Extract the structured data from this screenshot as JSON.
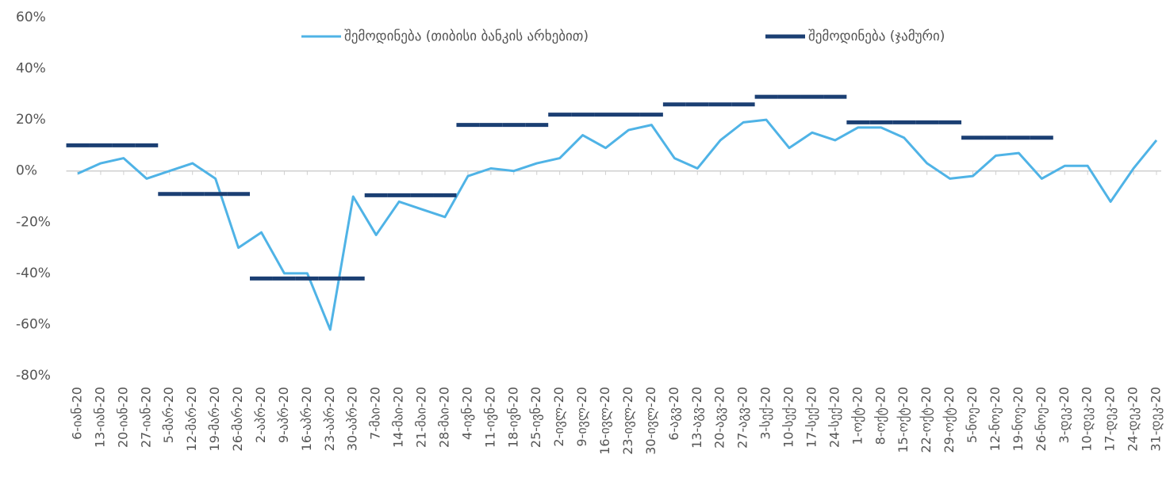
{
  "chart_data": {
    "type": "line",
    "categories": [
      "6-იან-20",
      "13-იან-20",
      "20-იან-20",
      "27-იან-20",
      "5-მარ-20",
      "12-მარ-20",
      "19-მარ-20",
      "26-მარ-20",
      "2-აპრ-20",
      "9-აპრ-20",
      "16-აპრ-20",
      "23-აპრ-20",
      "30-აპრ-20",
      "7-მაი-20",
      "14-მაი-20",
      "21-მაი-20",
      "28-მაი-20",
      "4-ივნ-20",
      "11-ივნ-20",
      "18-ივნ-20",
      "25-ივნ-20",
      "2-ივლ-20",
      "9-ივლ-20",
      "16-ივლ-20",
      "23-ივლ-20",
      "30-ივლ-20",
      "6-აგვ-20",
      "13-აგვ-20",
      "20-აგვ-20",
      "27-აგვ-20",
      "3-სექ-20",
      "10-სექ-20",
      "17-სექ-20",
      "24-სექ-20",
      "1-ოქტ-20",
      "8-ოქტ-20",
      "15-ოქტ-20",
      "22-ოქტ-20",
      "29-ოქტ-20",
      "5-ნოე-20",
      "12-ნოე-20",
      "19-ნოე-20",
      "26-ნოე-20",
      "3-დეკ-20",
      "10-დეკ-20",
      "17-დეკ-20",
      "24-დეკ-20",
      "31-დეკ-20"
    ],
    "series": [
      {
        "name": "შემოდინება (თიბისი ბანკის არხებით)",
        "color": "#4fb3e6",
        "style": "line",
        "values": [
          -1,
          3,
          5,
          -3,
          0,
          3,
          -3,
          -30,
          -24,
          -40,
          -40,
          -62,
          -10,
          -25,
          -12,
          -15,
          -18,
          -2,
          1,
          0,
          3,
          5,
          14,
          9,
          16,
          18,
          5,
          1,
          12,
          19,
          20,
          9,
          15,
          12,
          17,
          17,
          13,
          3,
          -3,
          -2,
          6,
          7,
          -3,
          2,
          2,
          -12,
          1,
          12
        ]
      },
      {
        "name": "შემოდინება (ჯამური)",
        "color": "#1b3f73",
        "style": "step",
        "values": [
          10,
          10,
          10,
          10,
          -9,
          -9,
          -9,
          -9,
          -42,
          -42,
          -42,
          -42,
          -42,
          -9.5,
          -9.5,
          -9.5,
          -9.5,
          18,
          18,
          18,
          18,
          22,
          22,
          22,
          22,
          22,
          26,
          26,
          26,
          26,
          29,
          29,
          29,
          29,
          19,
          19,
          19,
          19,
          19,
          13,
          13,
          13,
          13,
          null,
          null,
          null,
          null,
          null
        ]
      }
    ],
    "ylim": [
      -80,
      60
    ],
    "yticks": [
      {
        "value": -80,
        "label": "-80%"
      },
      {
        "value": -60,
        "label": "-60%"
      },
      {
        "value": -40,
        "label": "-40%"
      },
      {
        "value": -20,
        "label": "-20%"
      },
      {
        "value": 0,
        "label": "0%"
      },
      {
        "value": 20,
        "label": "20%"
      },
      {
        "value": 40,
        "label": "40%"
      },
      {
        "value": 60,
        "label": "60%"
      }
    ],
    "grid": false,
    "legend": "top"
  }
}
